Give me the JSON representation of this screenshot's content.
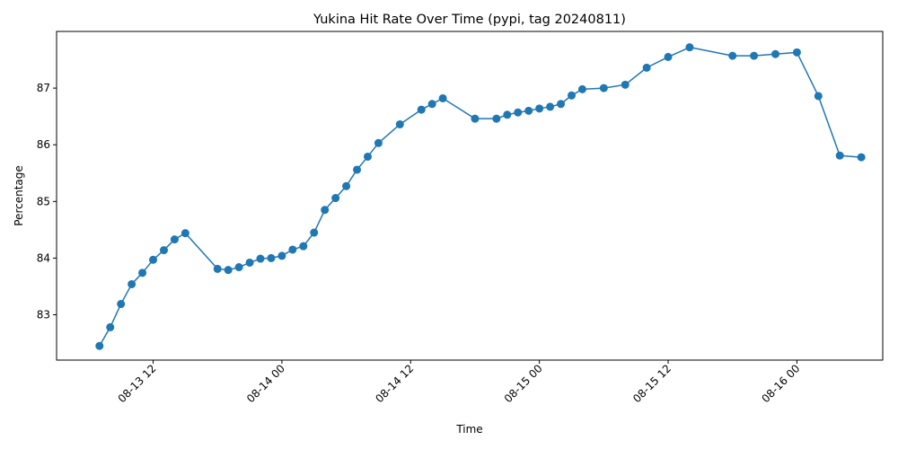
{
  "chart_data": {
    "type": "line",
    "title": "Yukina Hit Rate Over Time (pypi, tag 20240811)",
    "xlabel": "Time",
    "ylabel": "Percentage",
    "xlim": [
      "2024-08-13 03:00",
      "2024-08-16 08:00"
    ],
    "ylim": [
      82.2,
      88.0
    ],
    "grid": false,
    "line_color": "#1f77b4",
    "x_ticks": [
      {
        "label": "08-13 12",
        "value": "2024-08-13 12:00"
      },
      {
        "label": "08-14 00",
        "value": "2024-08-14 00:00"
      },
      {
        "label": "08-14 12",
        "value": "2024-08-14 12:00"
      },
      {
        "label": "08-15 00",
        "value": "2024-08-15 00:00"
      },
      {
        "label": "08-15 12",
        "value": "2024-08-15 12:00"
      },
      {
        "label": "08-16 00",
        "value": "2024-08-16 00:00"
      }
    ],
    "y_ticks": [
      "83",
      "84",
      "85",
      "86",
      "87"
    ],
    "series": [
      {
        "x": [
          "2024-08-13 07:00",
          "2024-08-13 08:00",
          "2024-08-13 09:00",
          "2024-08-13 10:00",
          "2024-08-13 11:00",
          "2024-08-13 12:00",
          "2024-08-13 13:00",
          "2024-08-13 14:00",
          "2024-08-13 15:00",
          "2024-08-13 18:00",
          "2024-08-13 19:00",
          "2024-08-13 20:00",
          "2024-08-13 21:00",
          "2024-08-13 22:00",
          "2024-08-13 23:00",
          "2024-08-14 00:00",
          "2024-08-14 01:00",
          "2024-08-14 02:00",
          "2024-08-14 03:00",
          "2024-08-14 04:00",
          "2024-08-14 05:00",
          "2024-08-14 06:00",
          "2024-08-14 07:00",
          "2024-08-14 08:00",
          "2024-08-14 09:00",
          "2024-08-14 11:00",
          "2024-08-14 13:00",
          "2024-08-14 14:00",
          "2024-08-14 15:00",
          "2024-08-14 18:00",
          "2024-08-14 20:00",
          "2024-08-14 21:00",
          "2024-08-14 22:00",
          "2024-08-14 23:00",
          "2024-08-15 00:00",
          "2024-08-15 01:00",
          "2024-08-15 02:00",
          "2024-08-15 03:00",
          "2024-08-15 04:00",
          "2024-08-15 06:00",
          "2024-08-15 08:00",
          "2024-08-15 10:00",
          "2024-08-15 12:00",
          "2024-08-15 14:00",
          "2024-08-15 18:00",
          "2024-08-15 20:00",
          "2024-08-15 22:00",
          "2024-08-16 00:00",
          "2024-08-16 02:00",
          "2024-08-16 04:00",
          "2024-08-16 06:00"
        ],
        "y": [
          82.45,
          82.78,
          83.19,
          83.54,
          83.74,
          83.97,
          84.14,
          84.33,
          84.44,
          83.81,
          83.79,
          83.84,
          83.92,
          83.99,
          84.0,
          84.04,
          84.15,
          84.21,
          84.45,
          84.85,
          85.06,
          85.27,
          85.56,
          85.79,
          86.03,
          86.36,
          86.62,
          86.72,
          86.82,
          86.46,
          86.46,
          86.53,
          86.57,
          86.6,
          86.64,
          86.67,
          86.72,
          86.87,
          86.98,
          87.0,
          87.06,
          87.36,
          87.55,
          87.72,
          87.57,
          87.57,
          87.6,
          87.63,
          86.86,
          85.81,
          85.78
        ]
      }
    ]
  }
}
